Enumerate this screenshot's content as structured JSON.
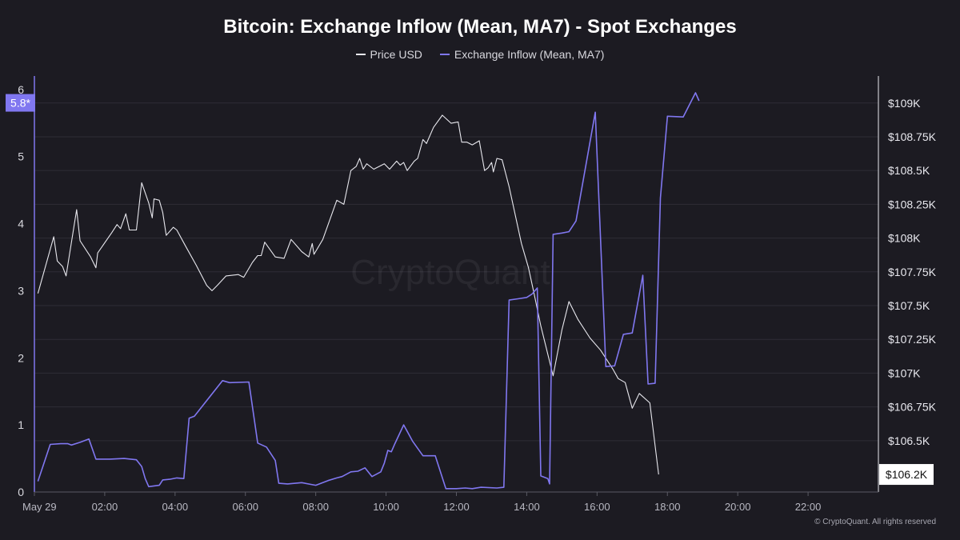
{
  "chart_data": {
    "type": "line",
    "title": "Bitcoin: Exchange Inflow (Mean, MA7) - Spot Exchanges",
    "watermark": "CryptoQuant",
    "copyright": "© CryptoQuant. All rights reserved",
    "legend_position": "top-center",
    "grid": "horizontal",
    "x_axis": {
      "unit": "hours",
      "range": [
        0,
        24
      ],
      "ticks": [
        {
          "value": 0,
          "label": "May 29"
        },
        {
          "value": 2,
          "label": "02:00"
        },
        {
          "value": 4,
          "label": "04:00"
        },
        {
          "value": 6,
          "label": "06:00"
        },
        {
          "value": 8,
          "label": "08:00"
        },
        {
          "value": 10,
          "label": "10:00"
        },
        {
          "value": 12,
          "label": "12:00"
        },
        {
          "value": 14,
          "label": "14:00"
        },
        {
          "value": 16,
          "label": "16:00"
        },
        {
          "value": 18,
          "label": "18:00"
        },
        {
          "value": 20,
          "label": "20:00"
        },
        {
          "value": 22,
          "label": "22:00"
        }
      ]
    },
    "y_left": {
      "range": [
        0,
        6.2
      ],
      "ticks": [
        {
          "value": 0,
          "label": "0"
        },
        {
          "value": 1,
          "label": "1"
        },
        {
          "value": 2,
          "label": "2"
        },
        {
          "value": 3,
          "label": "3"
        },
        {
          "value": 4,
          "label": "4"
        },
        {
          "value": 5,
          "label": "5"
        },
        {
          "value": 6,
          "label": "6"
        }
      ],
      "current_marker": {
        "value": 5.8,
        "label": "5.8*"
      }
    },
    "y_right": {
      "range": [
        106120,
        109200
      ],
      "ticks": [
        {
          "value": 106500,
          "label": "$106.5K"
        },
        {
          "value": 106750,
          "label": "$106.75K"
        },
        {
          "value": 107000,
          "label": "$107K"
        },
        {
          "value": 107250,
          "label": "$107.25K"
        },
        {
          "value": 107500,
          "label": "$107.5K"
        },
        {
          "value": 107750,
          "label": "$107.75K"
        },
        {
          "value": 108000,
          "label": "$108K"
        },
        {
          "value": 108250,
          "label": "$108.25K"
        },
        {
          "value": 108500,
          "label": "$108.5K"
        },
        {
          "value": 108750,
          "label": "$108.75K"
        },
        {
          "value": 109000,
          "label": "$109K"
        }
      ],
      "current_marker": {
        "value": 106250,
        "label": "$106.2K"
      }
    },
    "series": [
      {
        "name": "Price USD",
        "axis": "right",
        "color": "#e8e8ee",
        "points": [
          [
            0.1,
            107590
          ],
          [
            0.55,
            108010
          ],
          [
            0.65,
            107830
          ],
          [
            0.8,
            107790
          ],
          [
            0.9,
            107720
          ],
          [
            1.2,
            108210
          ],
          [
            1.3,
            107980
          ],
          [
            1.6,
            107860
          ],
          [
            1.75,
            107780
          ],
          [
            1.8,
            107890
          ],
          [
            2.2,
            108040
          ],
          [
            2.35,
            108100
          ],
          [
            2.45,
            108070
          ],
          [
            2.6,
            108180
          ],
          [
            2.7,
            108060
          ],
          [
            2.9,
            108060
          ],
          [
            3.05,
            108410
          ],
          [
            3.25,
            108260
          ],
          [
            3.35,
            108150
          ],
          [
            3.4,
            108290
          ],
          [
            3.55,
            108280
          ],
          [
            3.65,
            108190
          ],
          [
            3.75,
            108020
          ],
          [
            3.95,
            108080
          ],
          [
            4.05,
            108060
          ],
          [
            4.3,
            107940
          ],
          [
            4.6,
            107800
          ],
          [
            4.9,
            107650
          ],
          [
            5.05,
            107610
          ],
          [
            5.2,
            107650
          ],
          [
            5.45,
            107720
          ],
          [
            5.8,
            107730
          ],
          [
            5.95,
            107710
          ],
          [
            6.2,
            107820
          ],
          [
            6.35,
            107870
          ],
          [
            6.45,
            107870
          ],
          [
            6.55,
            107970
          ],
          [
            6.85,
            107860
          ],
          [
            7.1,
            107850
          ],
          [
            7.3,
            107990
          ],
          [
            7.6,
            107900
          ],
          [
            7.8,
            107860
          ],
          [
            7.9,
            107960
          ],
          [
            7.95,
            107880
          ],
          [
            8.2,
            107990
          ],
          [
            8.6,
            108280
          ],
          [
            8.8,
            108250
          ],
          [
            9.0,
            108500
          ],
          [
            9.15,
            108530
          ],
          [
            9.25,
            108590
          ],
          [
            9.35,
            108510
          ],
          [
            9.45,
            108550
          ],
          [
            9.65,
            108510
          ],
          [
            9.95,
            108550
          ],
          [
            10.1,
            108510
          ],
          [
            10.3,
            108570
          ],
          [
            10.4,
            108540
          ],
          [
            10.5,
            108560
          ],
          [
            10.6,
            108500
          ],
          [
            10.8,
            108570
          ],
          [
            10.9,
            108590
          ],
          [
            11.05,
            108730
          ],
          [
            11.15,
            108700
          ],
          [
            11.35,
            108820
          ],
          [
            11.6,
            108910
          ],
          [
            11.85,
            108850
          ],
          [
            12.05,
            108860
          ],
          [
            12.15,
            108710
          ],
          [
            12.3,
            108710
          ],
          [
            12.45,
            108690
          ],
          [
            12.65,
            108720
          ],
          [
            12.8,
            108500
          ],
          [
            12.9,
            108520
          ],
          [
            13.0,
            108560
          ],
          [
            13.05,
            108490
          ],
          [
            13.15,
            108590
          ],
          [
            13.3,
            108580
          ],
          [
            13.5,
            108380
          ],
          [
            13.85,
            107960
          ],
          [
            14.05,
            107780
          ],
          [
            14.2,
            107600
          ],
          [
            14.4,
            107350
          ],
          [
            14.75,
            106980
          ],
          [
            15.0,
            107320
          ],
          [
            15.2,
            107530
          ],
          [
            15.45,
            107400
          ],
          [
            15.8,
            107260
          ],
          [
            16.1,
            107170
          ],
          [
            16.45,
            107030
          ],
          [
            16.6,
            106960
          ],
          [
            16.8,
            106930
          ],
          [
            17.0,
            106740
          ],
          [
            17.2,
            106850
          ],
          [
            17.5,
            106780
          ],
          [
            17.75,
            106250
          ]
        ]
      },
      {
        "name": "Exchange Inflow (Mean, MA7)",
        "axis": "left",
        "color": "#8077f0",
        "points": [
          [
            0.1,
            0.16
          ],
          [
            0.45,
            0.71
          ],
          [
            0.75,
            0.72
          ],
          [
            0.95,
            0.72
          ],
          [
            1.05,
            0.7
          ],
          [
            1.3,
            0.74
          ],
          [
            1.55,
            0.79
          ],
          [
            1.75,
            0.49
          ],
          [
            2.15,
            0.49
          ],
          [
            2.55,
            0.5
          ],
          [
            2.9,
            0.48
          ],
          [
            3.05,
            0.38
          ],
          [
            3.15,
            0.2
          ],
          [
            3.25,
            0.08
          ],
          [
            3.55,
            0.1
          ],
          [
            3.65,
            0.18
          ],
          [
            3.85,
            0.19
          ],
          [
            4.05,
            0.21
          ],
          [
            4.25,
            0.2
          ],
          [
            4.4,
            1.1
          ],
          [
            4.55,
            1.13
          ],
          [
            5.35,
            1.66
          ],
          [
            5.55,
            1.63
          ],
          [
            6.1,
            1.64
          ],
          [
            6.35,
            0.73
          ],
          [
            6.6,
            0.67
          ],
          [
            6.85,
            0.47
          ],
          [
            6.95,
            0.13
          ],
          [
            7.2,
            0.12
          ],
          [
            7.6,
            0.14
          ],
          [
            8.0,
            0.1
          ],
          [
            8.35,
            0.17
          ],
          [
            8.6,
            0.21
          ],
          [
            8.75,
            0.23
          ],
          [
            9.0,
            0.3
          ],
          [
            9.2,
            0.31
          ],
          [
            9.4,
            0.36
          ],
          [
            9.6,
            0.23
          ],
          [
            9.85,
            0.3
          ],
          [
            9.95,
            0.43
          ],
          [
            10.05,
            0.62
          ],
          [
            10.15,
            0.6
          ],
          [
            10.25,
            0.72
          ],
          [
            10.5,
            1.0
          ],
          [
            10.75,
            0.76
          ],
          [
            11.05,
            0.54
          ],
          [
            11.4,
            0.54
          ],
          [
            11.7,
            0.05
          ],
          [
            12.0,
            0.05
          ],
          [
            12.25,
            0.06
          ],
          [
            12.45,
            0.05
          ],
          [
            12.7,
            0.07
          ],
          [
            13.15,
            0.06
          ],
          [
            13.35,
            0.07
          ],
          [
            13.5,
            2.86
          ],
          [
            13.75,
            2.88
          ],
          [
            14.0,
            2.9
          ],
          [
            14.15,
            2.95
          ],
          [
            14.3,
            3.04
          ],
          [
            14.4,
            0.24
          ],
          [
            14.6,
            0.2
          ],
          [
            14.65,
            0.12
          ],
          [
            14.75,
            3.84
          ],
          [
            15.0,
            3.86
          ],
          [
            15.2,
            3.88
          ],
          [
            15.4,
            4.04
          ],
          [
            15.95,
            5.66
          ],
          [
            16.25,
            1.87
          ],
          [
            16.5,
            1.88
          ],
          [
            16.75,
            2.35
          ],
          [
            17.0,
            2.37
          ],
          [
            17.3,
            3.23
          ],
          [
            17.45,
            1.61
          ],
          [
            17.65,
            1.62
          ],
          [
            17.8,
            4.38
          ],
          [
            18.0,
            5.6
          ],
          [
            18.45,
            5.59
          ],
          [
            18.8,
            5.95
          ],
          [
            18.9,
            5.83
          ]
        ]
      }
    ]
  }
}
